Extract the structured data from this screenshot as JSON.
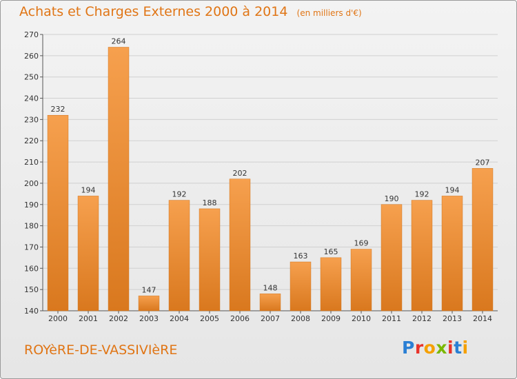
{
  "header": {
    "title": "Achats et Charges Externes 2000 à 2014",
    "subtitle": "(en milliers d'€)"
  },
  "footer": {
    "place": "ROYèRE-DE-VASSIVIèRE",
    "logo": "Proxiti",
    "logo_colors": [
      "#2a7fd4",
      "#e8332a",
      "#f5a000",
      "#7ab800",
      "#e8332a",
      "#2a7fd4",
      "#f5a000"
    ]
  },
  "colors": {
    "title": "#e07515",
    "bar_light": "#f6a04e",
    "bar_dark": "#d9781e",
    "grid": "#d0d0d0",
    "axis_text": "#333333"
  },
  "chart_data": {
    "type": "bar",
    "title": "Achats et Charges Externes 2000 à 2014",
    "subtitle": "(en milliers d'€)",
    "categories": [
      "2000",
      "2001",
      "2002",
      "2003",
      "2004",
      "2005",
      "2006",
      "2007",
      "2008",
      "2009",
      "2010",
      "2011",
      "2012",
      "2013",
      "2014"
    ],
    "values": [
      232,
      194,
      264,
      147,
      192,
      188,
      202,
      148,
      163,
      165,
      169,
      190,
      192,
      194,
      207
    ],
    "ylim": [
      140,
      270
    ],
    "yticks": [
      140,
      150,
      160,
      170,
      180,
      190,
      200,
      210,
      220,
      230,
      240,
      250,
      260,
      270
    ],
    "xlabel": "",
    "ylabel": "",
    "grid": true,
    "data_labels": true
  }
}
